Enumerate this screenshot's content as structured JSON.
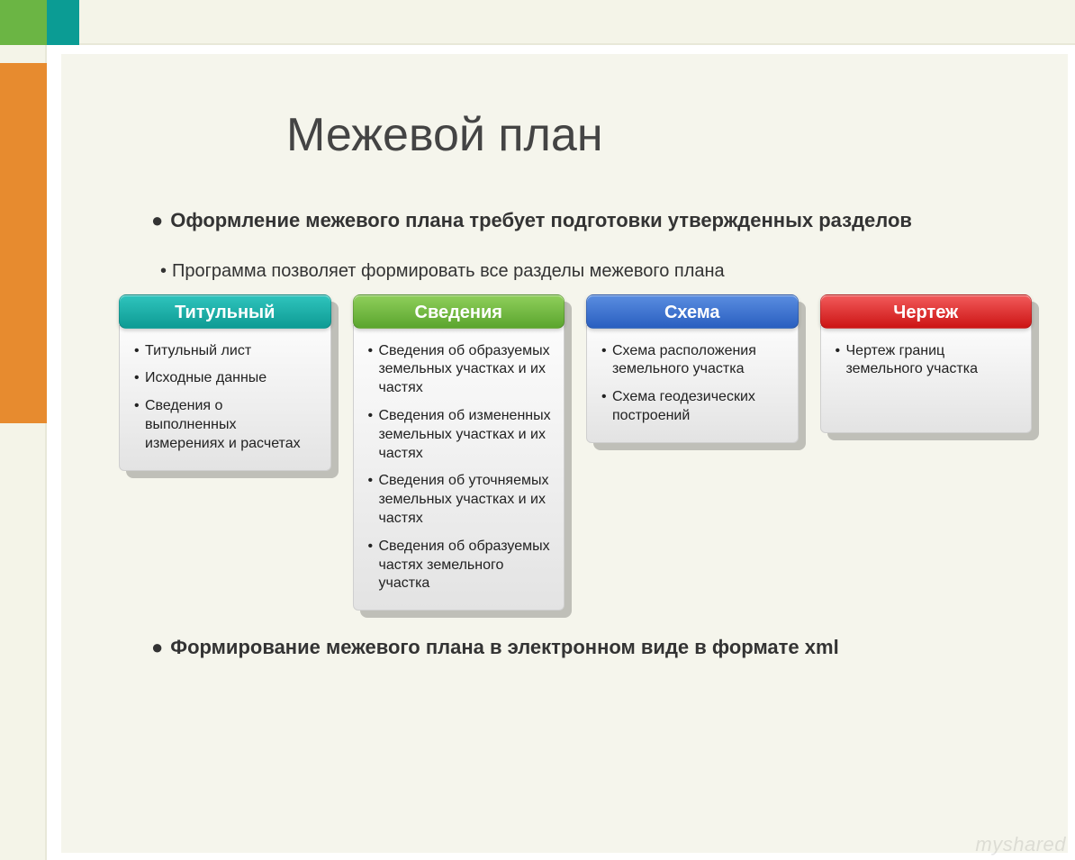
{
  "title": "Межевой план",
  "bullets": {
    "main": "Оформление межевого плана требует подготовки утвержденных разделов",
    "sub": "Программа позволяет формировать все разделы межевого плана",
    "bottom": "Формирование межевого плана в электронном виде в формате xml"
  },
  "cards": [
    {
      "header": "Титульный",
      "color_top": "#2fc4bd",
      "color_bottom": "#0e9b94",
      "items": [
        "Титульный лист",
        "Исходные данные",
        "Сведения о выполненных измерениях и расчетах"
      ]
    },
    {
      "header": "Сведения",
      "color_top": "#8fcf5b",
      "color_bottom": "#5ba52e",
      "items": [
        "Сведения об образуемых земельных участках и их частях",
        "Сведения об измененных земельных участках и их частях",
        "Сведения об уточняемых земельных участках и их частях",
        "Сведения об образуемых частях земельного участка"
      ]
    },
    {
      "header": "Схема",
      "color_top": "#5a8de0",
      "color_bottom": "#2a5fc0",
      "items": [
        "Схема расположения земельного участка",
        "Схема геодезических построений"
      ]
    },
    {
      "header": "Чертеж",
      "color_top": "#f25b5b",
      "color_bottom": "#cc1414",
      "items": [
        "Чертеж границ земельного участка"
      ]
    }
  ],
  "decor": {
    "top_left_green": "#6bb544",
    "top_accent_teal": "#0b9c94",
    "left_orange": "#e78b2f",
    "slide_bg": "#f5f5ec",
    "stripe_bg": "#f4f4e8"
  },
  "watermark": "myshared"
}
